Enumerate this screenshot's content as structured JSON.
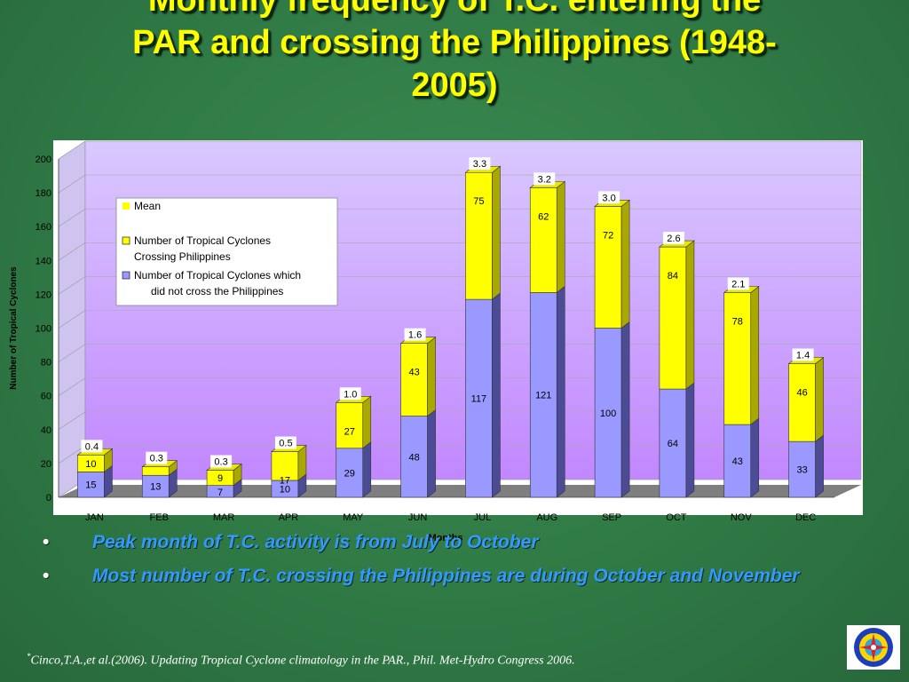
{
  "slide": {
    "title_lines": [
      "Monthly frequency of T.C. entering the",
      "PAR and crossing the Philippines (1948-",
      "2005)"
    ],
    "bullets": [
      "Peak month of T.C. activity is from July to October",
      "Most number of T.C. crossing the Philippines are during October and November"
    ],
    "bullet_marker": "•",
    "footnote_mark": "*",
    "footnote": "Cinco,T.A.,et al.(2006). Updating Tropical Cyclone climatology in the PAR., Phil. Met-Hydro Congress 2006.",
    "logo_icon": "pagasa-logo-icon"
  },
  "chart_data": {
    "type": "bar",
    "stacked": true,
    "style": "3d-stacked-column",
    "categories": [
      "JAN",
      "FEB",
      "MAR",
      "APR",
      "MAY",
      "JUN",
      "JUL",
      "AUG",
      "SEP",
      "OCT",
      "NOV",
      "DEC"
    ],
    "series": [
      {
        "name": "Number of Tropical Cyclones which did not cross the Philippines",
        "color": "#9999ff",
        "values": [
          15,
          13,
          7,
          10,
          29,
          48,
          117,
          121,
          100,
          64,
          43,
          33
        ]
      },
      {
        "name": "Number of Tropical Cyclones Crossing Philippines",
        "color": "#ffff00",
        "values": [
          10,
          null,
          9,
          17,
          27,
          43,
          75,
          62,
          72,
          84,
          78,
          46
        ]
      },
      {
        "name": "Mean",
        "color": "#ffff00",
        "values": [
          0.4,
          0.3,
          0.3,
          0.5,
          1.0,
          1.6,
          3.3,
          3.2,
          3.0,
          2.6,
          2.1,
          1.4
        ]
      }
    ],
    "mean_labels": [
      "0.4",
      "0.3",
      "0.3",
      "0.5",
      "1.0",
      "1.6",
      "3.3",
      "3.2",
      "3.0",
      "2.6",
      "2.1",
      "1.4"
    ],
    "ylabel": "Number of Tropical Cyclones",
    "xlabel": "Months",
    "ylim": [
      0,
      200
    ],
    "yticks": [
      0,
      20,
      40,
      60,
      80,
      100,
      120,
      140,
      160,
      180,
      200
    ],
    "grid": true,
    "legend_position": "upper-left",
    "legend_entries": [
      {
        "label_lines": [
          "Mean"
        ],
        "color": "#ffff00"
      },
      {
        "label_lines": [
          "Number of Tropical Cyclones",
          "Crossing Philippines"
        ],
        "color": "#ffff00"
      },
      {
        "label_lines": [
          "Number of Tropical Cyclones which",
          "did not cross the Philippines"
        ],
        "color": "#9999ff"
      }
    ],
    "colors": {
      "plot_top": "#d9c8ff",
      "plot_bottom": "#c287ff",
      "floor": "#7f7f7f",
      "base_dark": "#4b4b96",
      "cap_dark": "#a8a800"
    }
  }
}
